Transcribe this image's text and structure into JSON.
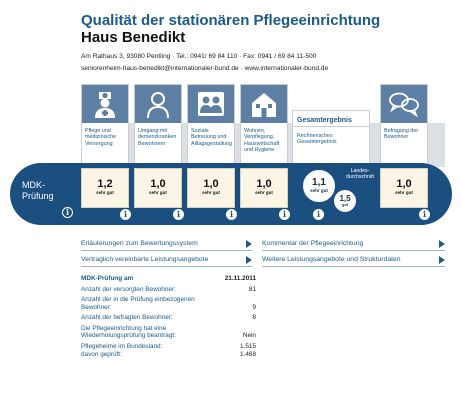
{
  "header": {
    "title_line1": "Qualität der stationären Pflegeeinrichtung",
    "title_line2": "Haus Benedikt",
    "address": "Am Rathaus 3, 93080 Pentling · Tel.: 0941/ 69 84 110 · Fax: 0941 / 69 84 11-500",
    "contact": "seniorenheim-haus-benedikt@internationaler-bund.de · www.internationaler-bund.de"
  },
  "categories": [
    {
      "label": "Pflege und medizinische Versorgung",
      "icon": "nurse-icon",
      "score": "1,2",
      "grade": "sehr gut"
    },
    {
      "label": "Umgang mit demenzkranken Bewohnern",
      "icon": "person-icon",
      "score": "1,0",
      "grade": "sehr gut"
    },
    {
      "label": "Soziale Betreuung und Alltagsgestaltung",
      "icon": "people-group-icon",
      "score": "1,0",
      "grade": "sehr gut"
    },
    {
      "label": "Wohnen, Verpflegung, Hauswirtschaft und Hygiene",
      "icon": "house-icon",
      "score": "1,0",
      "grade": "sehr gut"
    }
  ],
  "overall": {
    "heading": "Gesamtergebnis",
    "label": "Rechnerisches Gesamtergebnis",
    "score": "1,1",
    "grade": "sehr gut",
    "state_average_label": "Landes-durchschnitt",
    "state_average_score": "1,5",
    "state_average_grade": "gut"
  },
  "survey": {
    "label": "Befragung der Bewohner",
    "icon": "speech-bubbles-icon",
    "score": "1,0",
    "grade": "sehr gut"
  },
  "band_label_line1": "MDK-",
  "band_label_line2": "Prüfung",
  "info_glyph": "i",
  "links": [
    "Erläuterungen zum Bewertungssystem",
    "Kommentar der Pflegeeinrichtung",
    "Vertraglich vereinbarte Leistungsangebote",
    "Weitere Leistungsangebote und Strukturdaten"
  ],
  "facts": [
    {
      "key": "MDK-Prüfung am",
      "value": "21.11.2011"
    },
    {
      "key": "Anzahl der versorgten Bewohner:",
      "value": "81"
    },
    {
      "key": "Anzahl der in die Prüfung einbezogenen Bewohner:",
      "value": "9"
    },
    {
      "key": "Anzahl der befragten Bewohner:",
      "value": "8"
    },
    {
      "key": "Die Pflegeeinrichtung hat eine Wiederholungsprüfung beantragt:",
      "value": "Nein"
    },
    {
      "key": "Pflegeheime im Bundesland:",
      "value": "1.515"
    },
    {
      "key": "davon geprüft:",
      "value": "1.468"
    }
  ],
  "colors": {
    "brand_blue": "#1b4f80",
    "title_blue": "#1b5a8a",
    "score_bg": "#fbf5e7",
    "icon_bg": "#5d7fa4"
  }
}
